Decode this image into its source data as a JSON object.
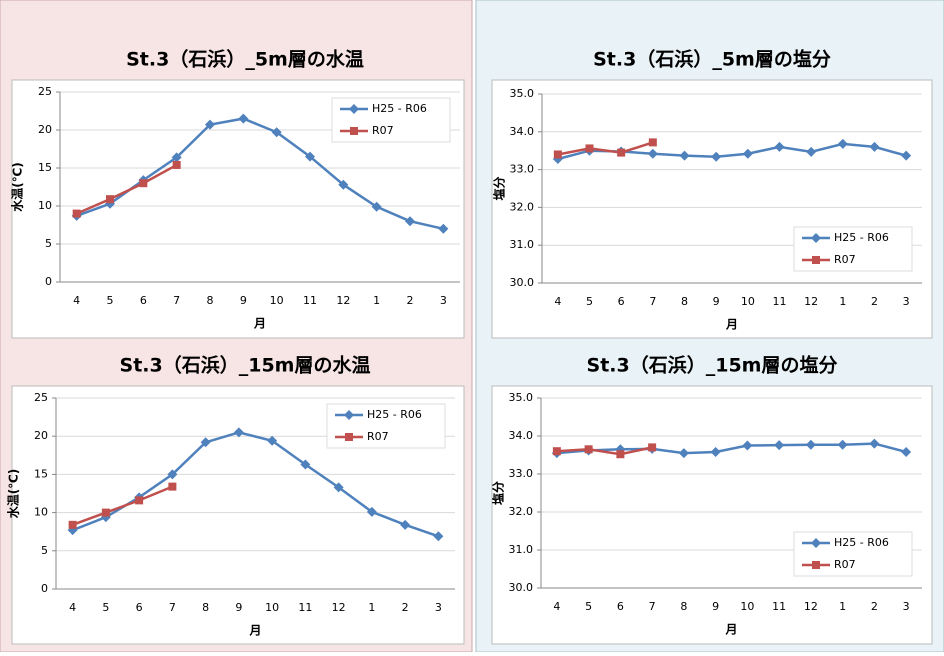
{
  "chart_data": [
    {
      "type": "line",
      "title": "St.3（石浜）_5m層の水温",
      "y_label": "水温(℃)",
      "x_label": "月",
      "categories": [
        "4",
        "5",
        "6",
        "7",
        "8",
        "9",
        "10",
        "11",
        "12",
        "1",
        "2",
        "3"
      ],
      "series": [
        {
          "name": "H25 - R06",
          "color": "#4f81bd",
          "marker": "diamond",
          "values": [
            8.7,
            10.3,
            13.4,
            16.4,
            20.7,
            21.5,
            19.7,
            16.5,
            12.8,
            9.9,
            8.0,
            7.0
          ]
        },
        {
          "name": "R07",
          "color": "#c0504d",
          "marker": "square",
          "values": [
            9.0,
            10.9,
            13.0,
            15.4,
            null,
            null,
            null,
            null,
            null,
            null,
            null,
            null
          ]
        }
      ],
      "ylim": [
        0,
        25
      ],
      "yticks": [
        0,
        5,
        10,
        15,
        20,
        25
      ],
      "grid": true,
      "legend": "upper right"
    },
    {
      "type": "line",
      "title": "St.3（石浜）_5m層の塩分",
      "y_label": "塩分",
      "x_label": "月",
      "categories": [
        "4",
        "5",
        "6",
        "7",
        "8",
        "9",
        "10",
        "11",
        "12",
        "1",
        "2",
        "3"
      ],
      "series": [
        {
          "name": "H25 - R06",
          "color": "#4f81bd",
          "marker": "diamond",
          "values": [
            33.28,
            33.5,
            33.48,
            33.42,
            33.37,
            33.34,
            33.42,
            33.6,
            33.47,
            33.68,
            33.6,
            33.37
          ]
        },
        {
          "name": "R07",
          "color": "#c0504d",
          "marker": "square",
          "values": [
            33.4,
            33.56,
            33.45,
            33.72,
            null,
            null,
            null,
            null,
            null,
            null,
            null,
            null
          ]
        }
      ],
      "ylim": [
        30,
        35
      ],
      "yticks": [
        {
          "value": 30,
          "label": "30.0"
        },
        {
          "value": 31,
          "label": "31.0"
        },
        {
          "value": 32,
          "label": "32.0"
        },
        {
          "value": 33,
          "label": "33.0"
        },
        {
          "value": 34,
          "label": "34.0"
        },
        {
          "value": 35,
          "label": "35.0"
        }
      ],
      "grid": true,
      "legend": "lower right"
    },
    {
      "type": "line",
      "title": "St.3（石浜）_15m層の水温",
      "y_label": "水温(℃)",
      "x_label": "月",
      "categories": [
        "4",
        "5",
        "6",
        "7",
        "8",
        "9",
        "10",
        "11",
        "12",
        "1",
        "2",
        "3"
      ],
      "series": [
        {
          "name": "H25 - R06",
          "color": "#4f81bd",
          "marker": "diamond",
          "values": [
            7.7,
            9.4,
            12.0,
            15.0,
            19.2,
            20.5,
            19.4,
            16.3,
            13.3,
            10.1,
            8.4,
            6.9
          ]
        },
        {
          "name": "R07",
          "color": "#c0504d",
          "marker": "square",
          "values": [
            8.4,
            10.0,
            11.6,
            13.4,
            null,
            null,
            null,
            null,
            null,
            null,
            null,
            null
          ]
        }
      ],
      "ylim": [
        0,
        25
      ],
      "yticks": [
        0,
        5,
        10,
        15,
        20,
        25
      ],
      "grid": true,
      "legend": "upper right"
    },
    {
      "type": "line",
      "title": "St.3（石浜）_15m層の塩分",
      "y_label": "塩分",
      "x_label": "月",
      "categories": [
        "4",
        "5",
        "6",
        "7",
        "8",
        "9",
        "10",
        "11",
        "12",
        "1",
        "2",
        "3"
      ],
      "series": [
        {
          "name": "H25 - R06",
          "color": "#4f81bd",
          "marker": "diamond",
          "values": [
            33.55,
            33.62,
            33.65,
            33.66,
            33.55,
            33.58,
            33.75,
            33.76,
            33.77,
            33.77,
            33.8,
            33.58
          ]
        },
        {
          "name": "R07",
          "color": "#c0504d",
          "marker": "square",
          "values": [
            33.6,
            33.65,
            33.52,
            33.7,
            null,
            null,
            null,
            null,
            null,
            null,
            null,
            null
          ]
        }
      ],
      "ylim": [
        30,
        35
      ],
      "yticks": [
        {
          "value": 30,
          "label": "30.0"
        },
        {
          "value": 31,
          "label": "31.0"
        },
        {
          "value": 32,
          "label": "32.0"
        },
        {
          "value": 33,
          "label": "33.0"
        },
        {
          "value": 34,
          "label": "34.0"
        },
        {
          "value": 35,
          "label": "35.0"
        }
      ],
      "grid": true,
      "legend": "lower right"
    }
  ]
}
